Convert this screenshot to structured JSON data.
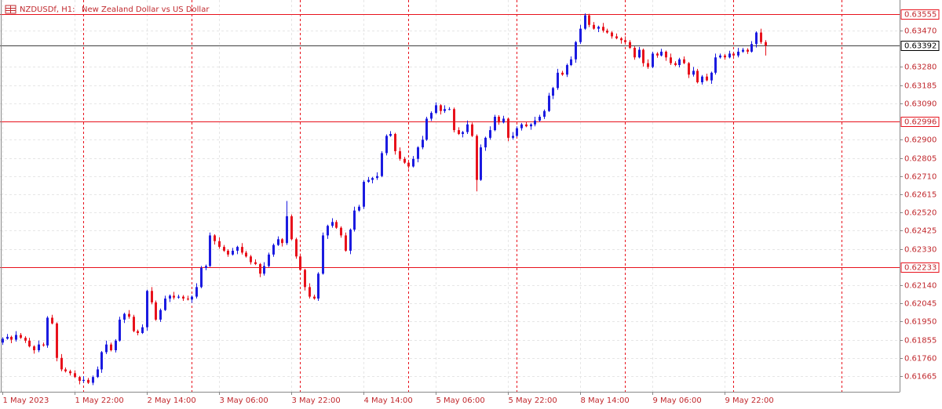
{
  "chart_data": {
    "type": "candlestick",
    "symbol": "NZDUSDf, H1:",
    "title": "New Zealand Dollar vs US Dollar",
    "up_color": "#1b1be0",
    "down_color": "#e8121c",
    "level_color": "#e8121c",
    "price_line_color": "#000000",
    "grid_color": "#e6e6e6",
    "separator_color": "#e8121c",
    "grid": true,
    "xlim": [
      -0.5,
      198.8
    ],
    "ylim": [
      0.61583,
      0.6363
    ],
    "xticks": [
      {
        "value": 0,
        "label": "1 May 2023"
      },
      {
        "value": 16,
        "label": "1 May 22:00"
      },
      {
        "value": 32,
        "label": "2 May 14:00"
      },
      {
        "value": 48,
        "label": "3 May 06:00"
      },
      {
        "value": 64,
        "label": "3 May 22:00"
      },
      {
        "value": 80,
        "label": "4 May 14:00"
      },
      {
        "value": 96,
        "label": "5 May 06:00"
      },
      {
        "value": 112,
        "label": "5 May 22:00"
      },
      {
        "value": 128,
        "label": "8 May 14:00"
      },
      {
        "value": 144,
        "label": "9 May 06:00"
      },
      {
        "value": 160,
        "label": "9 May 22:00"
      }
    ],
    "day_separators": [
      18,
      42,
      66,
      90,
      114,
      138,
      162,
      186
    ],
    "yticks": [
      {
        "value": 0.6347,
        "label": "0.63470"
      },
      {
        "value": 0.6328,
        "label": "0.63280"
      },
      {
        "value": 0.63185,
        "label": "0.63185"
      },
      {
        "value": 0.6309,
        "label": "0.63090"
      },
      {
        "value": 0.629,
        "label": "0.62900"
      },
      {
        "value": 0.62805,
        "label": "0.62805"
      },
      {
        "value": 0.6271,
        "label": "0.62710"
      },
      {
        "value": 0.62615,
        "label": "0.62615"
      },
      {
        "value": 0.6252,
        "label": "0.62520"
      },
      {
        "value": 0.62425,
        "label": "0.62425"
      },
      {
        "value": 0.6233,
        "label": "0.62330"
      },
      {
        "value": 0.6214,
        "label": "0.62140"
      },
      {
        "value": 0.62045,
        "label": "0.62045"
      },
      {
        "value": 0.6195,
        "label": "0.61950"
      },
      {
        "value": 0.61855,
        "label": "0.61855"
      },
      {
        "value": 0.6176,
        "label": "0.61760"
      },
      {
        "value": 0.61665,
        "label": "0.61665"
      }
    ],
    "levels": [
      0.63555,
      0.62996,
      0.62233
    ],
    "price_line": 0.63392,
    "candles": [
      [
        0.6184,
        0.61868,
        0.61828,
        0.6186
      ],
      [
        0.6186,
        0.61885,
        0.61855,
        0.6187
      ],
      [
        0.6187,
        0.61876,
        0.61837,
        0.61855
      ],
      [
        0.61855,
        0.619,
        0.61845,
        0.6188
      ],
      [
        0.6188,
        0.6189,
        0.61859,
        0.61865
      ],
      [
        0.61865,
        0.61873,
        0.61838,
        0.6185
      ],
      [
        0.6185,
        0.61865,
        0.61815,
        0.6182
      ],
      [
        0.6182,
        0.61826,
        0.61782,
        0.618
      ],
      [
        0.618,
        0.6185,
        0.6179,
        0.6183
      ],
      [
        0.6183,
        0.6184,
        0.61819,
        0.61825
      ],
      [
        0.61825,
        0.61978,
        0.61813,
        0.6197
      ],
      [
        0.6197,
        0.61985,
        0.61935,
        0.6194
      ],
      [
        0.6194,
        0.61946,
        0.61742,
        0.6176
      ],
      [
        0.6176,
        0.6178,
        0.6169,
        0.617
      ],
      [
        0.617,
        0.6171,
        0.61684,
        0.6169
      ],
      [
        0.6169,
        0.61698,
        0.61668,
        0.6168
      ],
      [
        0.6168,
        0.61695,
        0.61655,
        0.6166
      ],
      [
        0.6166,
        0.61666,
        0.61622,
        0.6164
      ],
      [
        0.6164,
        0.61665,
        0.6163,
        0.61645
      ],
      [
        0.61645,
        0.61655,
        0.61624,
        0.6163
      ],
      [
        0.6163,
        0.61668,
        0.61618,
        0.6166
      ],
      [
        0.6166,
        0.61715,
        0.61655,
        0.617
      ],
      [
        0.617,
        0.61796,
        0.61682,
        0.6179
      ],
      [
        0.6179,
        0.6185,
        0.6178,
        0.6183
      ],
      [
        0.6183,
        0.6184,
        0.61794,
        0.618
      ],
      [
        0.618,
        0.61858,
        0.61788,
        0.6185
      ],
      [
        0.6185,
        0.61975,
        0.61845,
        0.6196
      ],
      [
        0.6196,
        0.61996,
        0.61942,
        0.6199
      ],
      [
        0.6199,
        0.6201,
        0.61965,
        0.61975
      ],
      [
        0.61975,
        0.61985,
        0.61894,
        0.619
      ],
      [
        0.619,
        0.61908,
        0.61878,
        0.6189
      ],
      [
        0.6189,
        0.61935,
        0.61885,
        0.6192
      ],
      [
        0.6192,
        0.62116,
        0.61902,
        0.6211
      ],
      [
        0.6211,
        0.6213,
        0.6204,
        0.6205
      ],
      [
        0.6205,
        0.6206,
        0.61954,
        0.6196
      ],
      [
        0.6196,
        0.62018,
        0.61948,
        0.6201
      ],
      [
        0.6201,
        0.62085,
        0.62005,
        0.6207
      ],
      [
        0.6207,
        0.62091,
        0.62052,
        0.62085
      ],
      [
        0.62085,
        0.62105,
        0.62065,
        0.62075
      ],
      [
        0.62075,
        0.6209,
        0.62069,
        0.6208
      ],
      [
        0.6208,
        0.62088,
        0.62058,
        0.6207
      ],
      [
        0.6207,
        0.62085,
        0.6206,
        0.62065
      ],
      [
        0.62065,
        0.62086,
        0.62047,
        0.6208
      ],
      [
        0.6208,
        0.6215,
        0.6207,
        0.6213
      ],
      [
        0.6213,
        0.6224,
        0.62124,
        0.6223
      ],
      [
        0.6223,
        0.62248,
        0.62218,
        0.6224
      ],
      [
        0.6224,
        0.62415,
        0.62235,
        0.624
      ],
      [
        0.624,
        0.62406,
        0.62352,
        0.6237
      ],
      [
        0.6237,
        0.6239,
        0.6233,
        0.6234
      ],
      [
        0.6234,
        0.6235,
        0.62314,
        0.6232
      ],
      [
        0.6232,
        0.62328,
        0.62288,
        0.623
      ],
      [
        0.623,
        0.62335,
        0.62295,
        0.6232
      ],
      [
        0.6232,
        0.62346,
        0.62302,
        0.6234
      ],
      [
        0.6234,
        0.6236,
        0.623,
        0.6231
      ],
      [
        0.6231,
        0.6232,
        0.62284,
        0.6229
      ],
      [
        0.6229,
        0.62298,
        0.62248,
        0.6226
      ],
      [
        0.6226,
        0.62275,
        0.62245,
        0.6225
      ],
      [
        0.6225,
        0.62256,
        0.62182,
        0.622
      ],
      [
        0.622,
        0.6226,
        0.6219,
        0.6224
      ],
      [
        0.6224,
        0.6231,
        0.62234,
        0.623
      ],
      [
        0.623,
        0.62358,
        0.62288,
        0.6235
      ],
      [
        0.6235,
        0.62395,
        0.62345,
        0.6238
      ],
      [
        0.6238,
        0.62386,
        0.62342,
        0.6236
      ],
      [
        0.6236,
        0.6258,
        0.6235,
        0.625
      ],
      [
        0.625,
        0.6251,
        0.62374,
        0.6238
      ],
      [
        0.6238,
        0.62388,
        0.62278,
        0.6229
      ],
      [
        0.6229,
        0.62305,
        0.62215,
        0.6222
      ],
      [
        0.6222,
        0.62226,
        0.62112,
        0.6213
      ],
      [
        0.6213,
        0.6215,
        0.6207,
        0.6208
      ],
      [
        0.6208,
        0.6209,
        0.62064,
        0.6207
      ],
      [
        0.6207,
        0.62208,
        0.62058,
        0.622
      ],
      [
        0.622,
        0.62415,
        0.62195,
        0.624
      ],
      [
        0.624,
        0.62456,
        0.62382,
        0.6245
      ],
      [
        0.6245,
        0.6249,
        0.6244,
        0.6247
      ],
      [
        0.6247,
        0.6248,
        0.62434,
        0.6244
      ],
      [
        0.6244,
        0.62448,
        0.62388,
        0.624
      ],
      [
        0.624,
        0.62415,
        0.62315,
        0.6232
      ],
      [
        0.6232,
        0.62436,
        0.62302,
        0.6243
      ],
      [
        0.6243,
        0.6255,
        0.6242,
        0.6253
      ],
      [
        0.6253,
        0.6256,
        0.62524,
        0.6255
      ],
      [
        0.6255,
        0.62688,
        0.62538,
        0.6268
      ],
      [
        0.6268,
        0.62705,
        0.62675,
        0.6269
      ],
      [
        0.6269,
        0.62706,
        0.62672,
        0.627
      ],
      [
        0.627,
        0.6273,
        0.6269,
        0.6271
      ],
      [
        0.6271,
        0.6284,
        0.62704,
        0.6283
      ],
      [
        0.6283,
        0.62928,
        0.62818,
        0.6292
      ],
      [
        0.6292,
        0.62945,
        0.62915,
        0.6293
      ],
      [
        0.6293,
        0.62936,
        0.62822,
        0.6284
      ],
      [
        0.6284,
        0.6286,
        0.6279,
        0.628
      ],
      [
        0.628,
        0.6281,
        0.62774,
        0.6278
      ],
      [
        0.6278,
        0.62788,
        0.62748,
        0.6276
      ],
      [
        0.6276,
        0.62815,
        0.62755,
        0.628
      ],
      [
        0.628,
        0.62866,
        0.62782,
        0.6286
      ],
      [
        0.6286,
        0.6292,
        0.6285,
        0.629
      ],
      [
        0.629,
        0.6302,
        0.62894,
        0.6301
      ],
      [
        0.6301,
        0.63048,
        0.62998,
        0.6304
      ],
      [
        0.6304,
        0.63095,
        0.63035,
        0.6308
      ],
      [
        0.6308,
        0.63086,
        0.63032,
        0.6305
      ],
      [
        0.6305,
        0.6308,
        0.6304,
        0.6306
      ],
      [
        0.6306,
        0.6307,
        0.63054,
        0.6306
      ],
      [
        0.6306,
        0.63068,
        0.62938,
        0.6295
      ],
      [
        0.6295,
        0.62965,
        0.62925,
        0.6293
      ],
      [
        0.6293,
        0.62946,
        0.62912,
        0.6294
      ],
      [
        0.6294,
        0.63,
        0.6293,
        0.6298
      ],
      [
        0.6298,
        0.6299,
        0.62914,
        0.6292
      ],
      [
        0.6292,
        0.62928,
        0.6263,
        0.6269
      ],
      [
        0.6269,
        0.62875,
        0.62685,
        0.6286
      ],
      [
        0.6286,
        0.62916,
        0.62842,
        0.6291
      ],
      [
        0.6291,
        0.6297,
        0.629,
        0.6295
      ],
      [
        0.6295,
        0.6303,
        0.62944,
        0.6302
      ],
      [
        0.6302,
        0.63028,
        0.62978,
        0.6299
      ],
      [
        0.6299,
        0.63025,
        0.62985,
        0.6301
      ],
      [
        0.6301,
        0.63016,
        0.62892,
        0.6291
      ],
      [
        0.6291,
        0.6294,
        0.629,
        0.6292
      ],
      [
        0.6292,
        0.6297,
        0.62914,
        0.6296
      ],
      [
        0.6296,
        0.62988,
        0.62948,
        0.6298
      ],
      [
        0.6298,
        0.62995,
        0.62965,
        0.6297
      ],
      [
        0.6297,
        0.62986,
        0.62952,
        0.6298
      ],
      [
        0.6298,
        0.6302,
        0.6297,
        0.63
      ],
      [
        0.63,
        0.6303,
        0.62994,
        0.6302
      ],
      [
        0.6302,
        0.63058,
        0.63008,
        0.6305
      ],
      [
        0.6305,
        0.63145,
        0.63045,
        0.6313
      ],
      [
        0.6313,
        0.63176,
        0.63112,
        0.6317
      ],
      [
        0.6317,
        0.6327,
        0.6316,
        0.6325
      ],
      [
        0.6325,
        0.6326,
        0.63234,
        0.6324
      ],
      [
        0.6324,
        0.63298,
        0.63228,
        0.6329
      ],
      [
        0.6329,
        0.63335,
        0.63285,
        0.6332
      ],
      [
        0.6332,
        0.63416,
        0.63302,
        0.6341
      ],
      [
        0.6341,
        0.635,
        0.634,
        0.6348
      ],
      [
        0.6348,
        0.6356,
        0.63474,
        0.6355
      ],
      [
        0.6355,
        0.63558,
        0.63488,
        0.635
      ],
      [
        0.635,
        0.63515,
        0.63475,
        0.6348
      ],
      [
        0.6348,
        0.63496,
        0.63462,
        0.6349
      ],
      [
        0.6349,
        0.6351,
        0.6346,
        0.6347
      ],
      [
        0.6347,
        0.6348,
        0.63454,
        0.6346
      ],
      [
        0.6346,
        0.63468,
        0.63428,
        0.6344
      ],
      [
        0.6344,
        0.63455,
        0.63425,
        0.6343
      ],
      [
        0.6343,
        0.63436,
        0.63402,
        0.6342
      ],
      [
        0.6342,
        0.6344,
        0.634,
        0.6341
      ],
      [
        0.6341,
        0.6342,
        0.63374,
        0.6338
      ],
      [
        0.6338,
        0.63388,
        0.63318,
        0.6333
      ],
      [
        0.6333,
        0.63385,
        0.63325,
        0.6337
      ],
      [
        0.6337,
        0.63376,
        0.63282,
        0.633
      ],
      [
        0.633,
        0.6332,
        0.6327,
        0.6328
      ],
      [
        0.6328,
        0.6336,
        0.63274,
        0.6335
      ],
      [
        0.6335,
        0.63358,
        0.63328,
        0.6334
      ],
      [
        0.6334,
        0.63375,
        0.63335,
        0.6336
      ],
      [
        0.6336,
        0.63366,
        0.63312,
        0.6333
      ],
      [
        0.6333,
        0.6335,
        0.6329,
        0.633
      ],
      [
        0.633,
        0.6331,
        0.63284,
        0.6329
      ],
      [
        0.6329,
        0.63328,
        0.63278,
        0.6332
      ],
      [
        0.6332,
        0.63335,
        0.63295,
        0.633
      ],
      [
        0.633,
        0.63306,
        0.63222,
        0.6324
      ],
      [
        0.6324,
        0.6328,
        0.6323,
        0.6326
      ],
      [
        0.6326,
        0.6327,
        0.63194,
        0.632
      ],
      [
        0.632,
        0.63238,
        0.63188,
        0.6323
      ],
      [
        0.6323,
        0.63245,
        0.63205,
        0.6321
      ],
      [
        0.6321,
        0.63256,
        0.63192,
        0.6325
      ],
      [
        0.6325,
        0.6335,
        0.6324,
        0.6333
      ],
      [
        0.6333,
        0.6335,
        0.63324,
        0.6334
      ],
      [
        0.6334,
        0.63348,
        0.63318,
        0.6333
      ],
      [
        0.6333,
        0.63365,
        0.63325,
        0.6335
      ],
      [
        0.6335,
        0.63356,
        0.63322,
        0.6334
      ],
      [
        0.6334,
        0.6338,
        0.6333,
        0.6336
      ],
      [
        0.6336,
        0.6338,
        0.63354,
        0.6337
      ],
      [
        0.6337,
        0.63378,
        0.63348,
        0.6336
      ],
      [
        0.6336,
        0.63415,
        0.63355,
        0.634
      ],
      [
        0.634,
        0.63466,
        0.63382,
        0.6346
      ],
      [
        0.6346,
        0.6348,
        0.634,
        0.6341
      ],
      [
        0.6341,
        0.6342,
        0.6334,
        0.63392
      ]
    ]
  }
}
